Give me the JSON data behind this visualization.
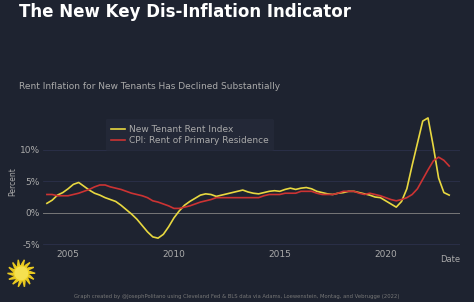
{
  "title": "The New Key Dis-Inflation Indicator",
  "subtitle": "Rent Inflation for New Tenants Has Declined Substantially",
  "xlabel": "Date",
  "ylabel": "Percent",
  "bg_color": "#1e2330",
  "plot_bg_color": "#1e2330",
  "grid_color": "#2e3450",
  "text_color": "#aaaaaa",
  "caption": "Graph created by @JosephPolitano using Cleveland Fed & BLS data via Adams, Loewenstein, Montag, and Vebrugge (2022)",
  "ylim": [
    -5.5,
    15.5
  ],
  "yticks": [
    -5,
    0,
    5,
    10
  ],
  "ytick_labels": [
    "-5%",
    "0%",
    "5%",
    "10%"
  ],
  "legend_labels": [
    "New Tenant Rent Index",
    "CPI: Rent of Primary Residence"
  ],
  "line1_color": "#e8d840",
  "line2_color": "#cc3333",
  "new_tenant_x": [
    2004.0,
    2004.25,
    2004.5,
    2004.75,
    2005.0,
    2005.25,
    2005.5,
    2005.75,
    2006.0,
    2006.25,
    2006.5,
    2006.75,
    2007.0,
    2007.25,
    2007.5,
    2007.75,
    2008.0,
    2008.25,
    2008.5,
    2008.75,
    2009.0,
    2009.25,
    2009.5,
    2009.75,
    2010.0,
    2010.25,
    2010.5,
    2010.75,
    2011.0,
    2011.25,
    2011.5,
    2011.75,
    2012.0,
    2012.25,
    2012.5,
    2012.75,
    2013.0,
    2013.25,
    2013.5,
    2013.75,
    2014.0,
    2014.25,
    2014.5,
    2014.75,
    2015.0,
    2015.25,
    2015.5,
    2015.75,
    2016.0,
    2016.25,
    2016.5,
    2016.75,
    2017.0,
    2017.25,
    2017.5,
    2017.75,
    2018.0,
    2018.25,
    2018.5,
    2018.75,
    2019.0,
    2019.25,
    2019.5,
    2019.75,
    2020.0,
    2020.25,
    2020.5,
    2020.75,
    2021.0,
    2021.25,
    2021.5,
    2021.75,
    2022.0,
    2022.25,
    2022.5,
    2022.75,
    2023.0
  ],
  "new_tenant_y": [
    1.5,
    2.0,
    2.8,
    3.2,
    3.8,
    4.5,
    4.8,
    4.2,
    3.6,
    3.1,
    2.8,
    2.4,
    2.1,
    1.8,
    1.2,
    0.5,
    -0.2,
    -1.0,
    -2.0,
    -3.0,
    -3.8,
    -4.0,
    -3.4,
    -2.2,
    -0.8,
    0.3,
    1.2,
    1.8,
    2.3,
    2.8,
    3.0,
    2.9,
    2.6,
    2.8,
    3.0,
    3.2,
    3.4,
    3.6,
    3.3,
    3.1,
    3.0,
    3.2,
    3.4,
    3.5,
    3.4,
    3.7,
    3.9,
    3.7,
    3.9,
    4.0,
    3.8,
    3.4,
    3.2,
    3.0,
    2.9,
    3.1,
    3.2,
    3.4,
    3.4,
    3.2,
    3.0,
    2.8,
    2.5,
    2.4,
    1.9,
    1.4,
    0.9,
    1.8,
    3.8,
    7.5,
    11.0,
    14.5,
    15.0,
    10.5,
    5.5,
    3.2,
    2.8
  ],
  "cpi_x": [
    2004.0,
    2004.25,
    2004.5,
    2004.75,
    2005.0,
    2005.25,
    2005.5,
    2005.75,
    2006.0,
    2006.25,
    2006.5,
    2006.75,
    2007.0,
    2007.25,
    2007.5,
    2007.75,
    2008.0,
    2008.25,
    2008.5,
    2008.75,
    2009.0,
    2009.25,
    2009.5,
    2009.75,
    2010.0,
    2010.25,
    2010.5,
    2010.75,
    2011.0,
    2011.25,
    2011.5,
    2011.75,
    2012.0,
    2012.25,
    2012.5,
    2012.75,
    2013.0,
    2013.25,
    2013.5,
    2013.75,
    2014.0,
    2014.25,
    2014.5,
    2014.75,
    2015.0,
    2015.25,
    2015.5,
    2015.75,
    2016.0,
    2016.25,
    2016.5,
    2016.75,
    2017.0,
    2017.25,
    2017.5,
    2017.75,
    2018.0,
    2018.25,
    2018.5,
    2018.75,
    2019.0,
    2019.25,
    2019.5,
    2019.75,
    2020.0,
    2020.25,
    2020.5,
    2020.75,
    2021.0,
    2021.25,
    2021.5,
    2021.75,
    2022.0,
    2022.25,
    2022.5,
    2022.75,
    2023.0
  ],
  "cpi_y": [
    2.9,
    2.9,
    2.7,
    2.7,
    2.7,
    2.9,
    3.1,
    3.4,
    3.7,
    4.1,
    4.4,
    4.4,
    4.1,
    3.9,
    3.7,
    3.4,
    3.1,
    2.9,
    2.7,
    2.4,
    1.9,
    1.7,
    1.4,
    1.1,
    0.7,
    0.7,
    0.9,
    1.1,
    1.4,
    1.7,
    1.9,
    2.1,
    2.4,
    2.4,
    2.4,
    2.4,
    2.4,
    2.4,
    2.4,
    2.4,
    2.4,
    2.7,
    2.9,
    2.9,
    2.9,
    3.1,
    3.1,
    3.1,
    3.4,
    3.4,
    3.4,
    3.1,
    2.9,
    2.9,
    2.9,
    3.1,
    3.4,
    3.4,
    3.4,
    3.1,
    2.9,
    3.1,
    2.9,
    2.7,
    2.4,
    2.1,
    1.9,
    2.1,
    2.4,
    2.9,
    3.8,
    5.3,
    6.8,
    8.2,
    8.8,
    8.3,
    7.4
  ]
}
